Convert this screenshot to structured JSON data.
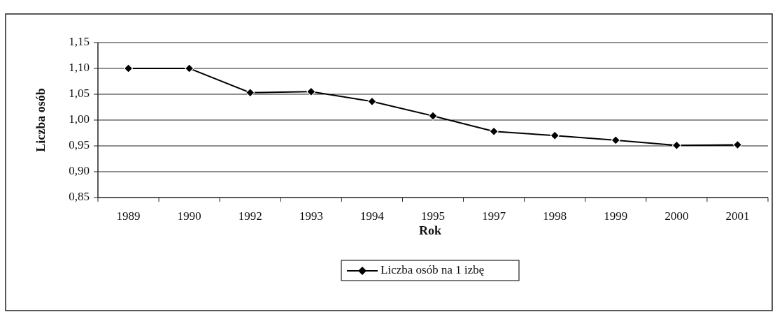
{
  "chart_data": {
    "type": "line",
    "categories": [
      "1989",
      "1990",
      "1992",
      "1993",
      "1994",
      "1995",
      "1997",
      "1998",
      "1999",
      "2000",
      "2001"
    ],
    "series": [
      {
        "name": "Liczba osób na 1 izbę",
        "color": "#000000",
        "values": [
          1.1,
          1.1,
          1.053,
          1.055,
          1.036,
          1.008,
          0.978,
          0.97,
          0.961,
          0.951,
          0.952
        ]
      }
    ],
    "xlabel": "Rok",
    "ylabel": "Liczba osób",
    "ylim": [
      0.85,
      1.15
    ],
    "yticks": [
      {
        "value": 0.85,
        "label": "0,85"
      },
      {
        "value": 0.9,
        "label": "0,90"
      },
      {
        "value": 0.95,
        "label": "0,95"
      },
      {
        "value": 1.0,
        "label": "1,00"
      },
      {
        "value": 1.05,
        "label": "1,05"
      },
      {
        "value": 1.1,
        "label": "1,10"
      },
      {
        "value": 1.15,
        "label": "1,15"
      }
    ],
    "grid": true,
    "legend": "bottom"
  }
}
